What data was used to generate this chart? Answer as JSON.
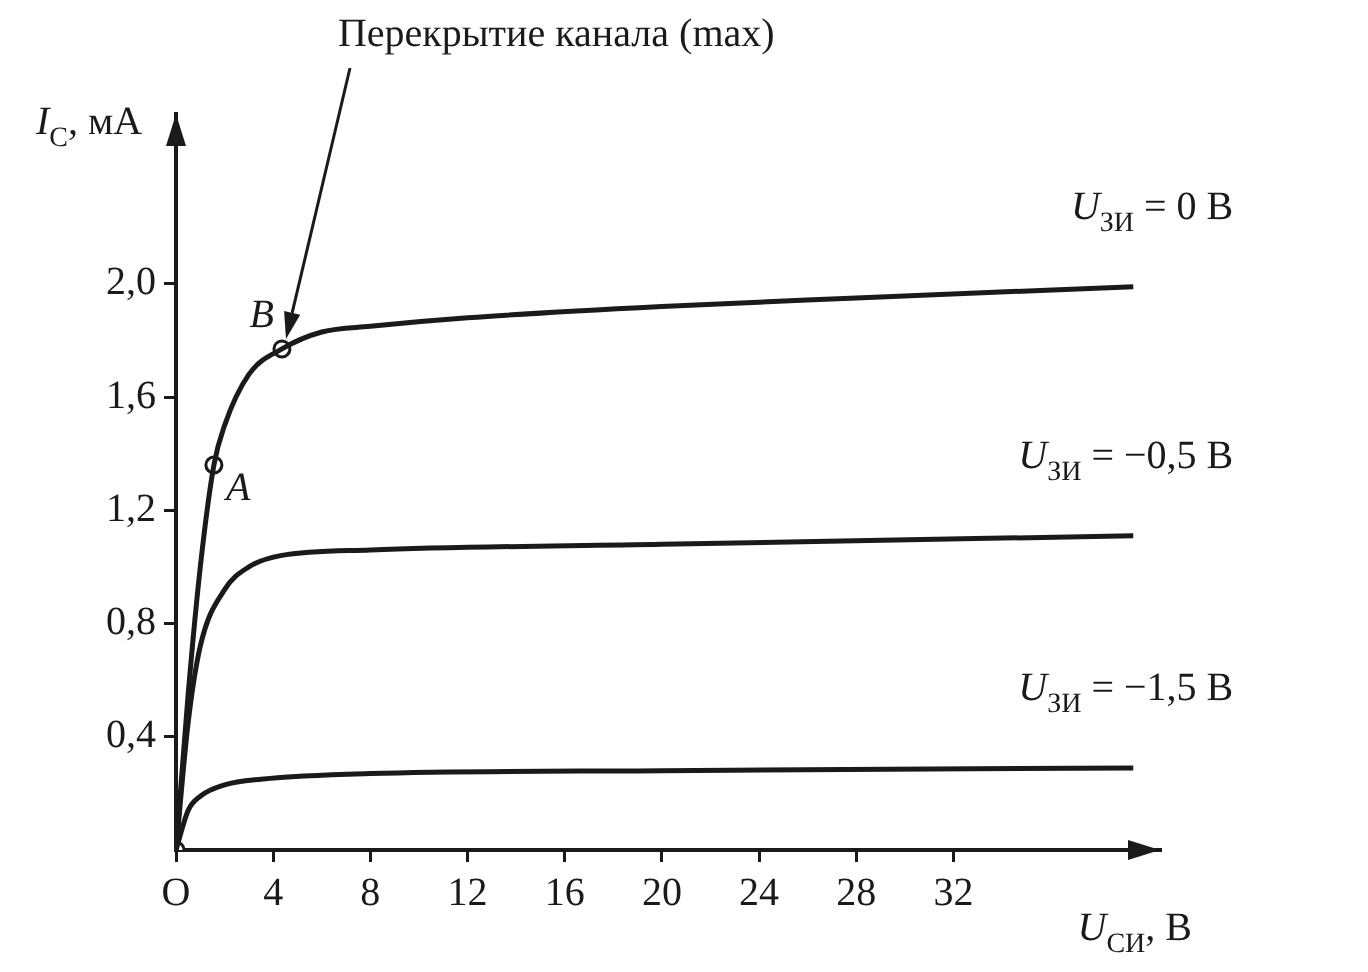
{
  "chart_data": {
    "type": "line",
    "xlabel": "U$_{СИ}$, В",
    "ylabel": "I$_{С}$, мА",
    "xlim": [
      0,
      40.5
    ],
    "ylim": [
      0,
      2.6
    ],
    "xticks": [
      {
        "value": 0,
        "label": "O"
      },
      4,
      8,
      12,
      16,
      20,
      24,
      28,
      32
    ],
    "yticks": [
      {
        "value": 0.4,
        "label": "0,4"
      },
      {
        "value": 0.8,
        "label": "0,8"
      },
      {
        "value": 1.2,
        "label": "1,2"
      },
      {
        "value": 1.6,
        "label": "1,6"
      },
      {
        "value": 2,
        "label": "2,0"
      }
    ],
    "grid": false,
    "legend": false,
    "line_style": "solid",
    "annotations": [
      "Перекрытие канала (max)"
    ],
    "series": [
      {
        "name": "U$_{ЗИ}$ = 0 В",
        "color": "#1a1a1a",
        "marker": "none",
        "x": [
          0,
          0.5,
          1,
          1.56,
          2,
          3,
          4.36,
          6,
          8,
          12,
          20,
          28,
          39.4
        ],
        "values": [
          0,
          0.55,
          1.0,
          1.36,
          1.5,
          1.68,
          1.77,
          1.83,
          1.85,
          1.88,
          1.92,
          1.95,
          1.99
        ]
      },
      {
        "name": "U$_{ЗИ}$ = −0,5 В",
        "color": "#1a1a1a",
        "marker": "none",
        "x": [
          0,
          0.5,
          1,
          2,
          3,
          4.3,
          8,
          20,
          39.4
        ],
        "values": [
          0,
          0.45,
          0.72,
          0.92,
          1.0,
          1.04,
          1.06,
          1.08,
          1.11
        ]
      },
      {
        "name": "U$_{ЗИ}$ = −1,5 В",
        "color": "#1a1a1a",
        "marker": "none",
        "x": [
          0,
          0.5,
          1,
          2,
          3.5,
          8,
          20,
          39.4
        ],
        "values": [
          0,
          0.14,
          0.19,
          0.23,
          0.25,
          0.27,
          0.28,
          0.29
        ]
      },
      {
        "type": "scatter",
        "color": "#1a1a1a",
        "marker": "circle",
        "x": [
          0,
          1.56,
          4.36
        ],
        "values": [
          0,
          1.36,
          1.77
        ],
        "value_labels": [
          null,
          "A",
          "B"
        ]
      }
    ]
  }
}
